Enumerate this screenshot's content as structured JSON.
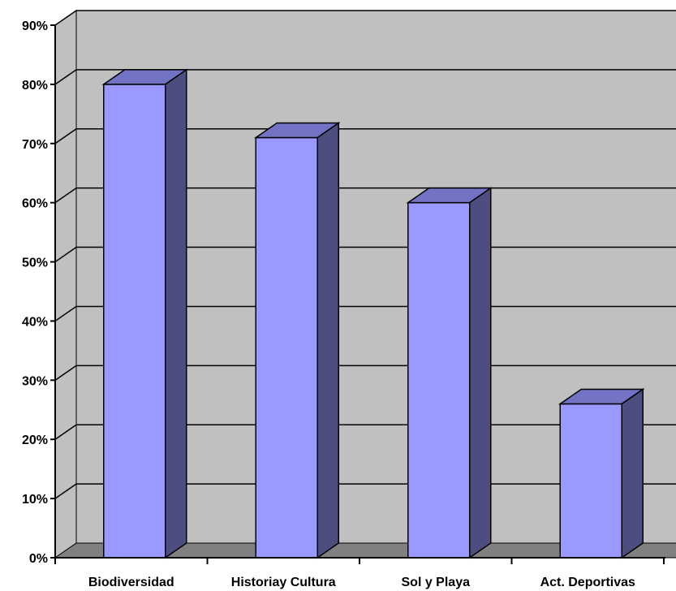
{
  "chart_data": {
    "type": "bar",
    "categories": [
      "Biodiversidad",
      "Historiay Cultura",
      "Sol y Playa",
      "Act. Deportivas"
    ],
    "values": [
      80,
      71,
      60,
      26
    ],
    "value_unit": "%",
    "ylim": [
      0,
      90
    ],
    "yticks": [
      "0%",
      "10%",
      "20%",
      "30%",
      "40%",
      "50%",
      "60%",
      "70%",
      "80%",
      "90%"
    ],
    "grid": true,
    "legend": "none",
    "three_d": true,
    "colors": {
      "bar_front": "#9999ff",
      "bar_top": "#7373c6",
      "bar_side": "#4d4d80",
      "plot_wall": "#c0c0c0",
      "floor": "#808080",
      "gridline": "#000000"
    }
  }
}
